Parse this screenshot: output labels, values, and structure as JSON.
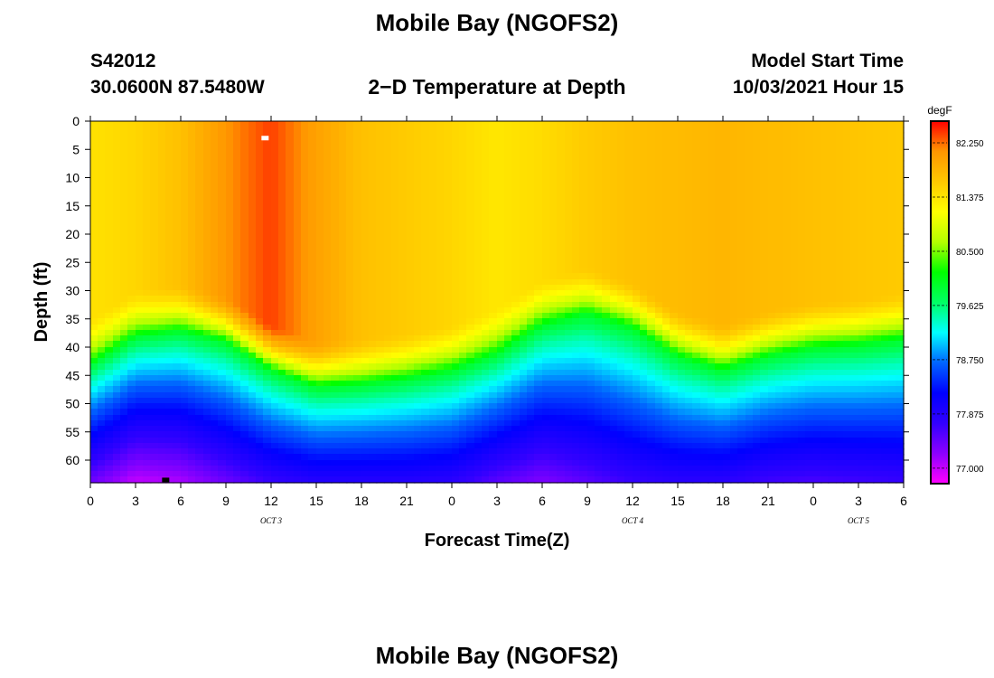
{
  "header": {
    "title": "Mobile Bay (NGOFS2)",
    "station_id": "S42012",
    "station_coords": "30.0600N  87.5480W",
    "plot_title": "2−D Temperature at Depth",
    "model_label": "Model Start Time",
    "model_time": "10/03/2021 Hour 15"
  },
  "footer": {
    "title": "Mobile Bay (NGOFS2)"
  },
  "chart_data": {
    "type": "heatmap",
    "xlabel": "Forecast Time(Z)",
    "ylabel": "Depth (ft)",
    "x_unit": "hours",
    "xlim": [
      0,
      54
    ],
    "ylim": [
      0,
      64
    ],
    "y_inverted": true,
    "x_ticks": [
      {
        "x": 0,
        "label": "0"
      },
      {
        "x": 3,
        "label": "3"
      },
      {
        "x": 6,
        "label": "6"
      },
      {
        "x": 9,
        "label": "9"
      },
      {
        "x": 12,
        "label": "12"
      },
      {
        "x": 15,
        "label": "15"
      },
      {
        "x": 18,
        "label": "18"
      },
      {
        "x": 21,
        "label": "21"
      },
      {
        "x": 24,
        "label": "0"
      },
      {
        "x": 27,
        "label": "3"
      },
      {
        "x": 30,
        "label": "6"
      },
      {
        "x": 33,
        "label": "9"
      },
      {
        "x": 36,
        "label": "12"
      },
      {
        "x": 39,
        "label": "15"
      },
      {
        "x": 42,
        "label": "18"
      },
      {
        "x": 45,
        "label": "21"
      },
      {
        "x": 48,
        "label": "0"
      },
      {
        "x": 51,
        "label": "3"
      },
      {
        "x": 54,
        "label": "6"
      }
    ],
    "date_labels": [
      {
        "x": 12,
        "label": "OCT 3"
      },
      {
        "x": 36,
        "label": "OCT 4"
      },
      {
        "x": 51,
        "label": "OCT 5"
      }
    ],
    "y_ticks": [
      0,
      5,
      10,
      15,
      20,
      25,
      30,
      35,
      40,
      45,
      50,
      55,
      60
    ],
    "colorbar": {
      "unit": "degF",
      "min": 76.75,
      "max": 82.6,
      "ticks": [
        82.25,
        81.375,
        80.5,
        79.625,
        78.75,
        77.875,
        77.0
      ],
      "tick_labels": [
        "82.250",
        "81.375",
        "80.500",
        "79.625",
        "78.750",
        "77.875",
        "77.000"
      ],
      "colors": [
        "#ff00ff",
        "#8c00ff",
        "#3200ff",
        "#0000ff",
        "#0064ff",
        "#00ffff",
        "#00ff64",
        "#00ff00",
        "#b4ff00",
        "#ffff00",
        "#ffc800",
        "#ff9600",
        "#ff0000"
      ]
    },
    "thermocline_depth_ft": [
      {
        "x": 0,
        "depth": 43
      },
      {
        "x": 3,
        "depth": 38
      },
      {
        "x": 6,
        "depth": 37
      },
      {
        "x": 9,
        "depth": 39
      },
      {
        "x": 12,
        "depth": 44
      },
      {
        "x": 15,
        "depth": 47
      },
      {
        "x": 18,
        "depth": 46.5
      },
      {
        "x": 21,
        "depth": 45.5
      },
      {
        "x": 24,
        "depth": 44
      },
      {
        "x": 27,
        "depth": 41
      },
      {
        "x": 30,
        "depth": 36
      },
      {
        "x": 33,
        "depth": 34
      },
      {
        "x": 36,
        "depth": 36.5
      },
      {
        "x": 39,
        "depth": 41.5
      },
      {
        "x": 42,
        "depth": 44
      },
      {
        "x": 45,
        "depth": 41.5
      },
      {
        "x": 48,
        "depth": 40
      },
      {
        "x": 51,
        "depth": 39.5
      },
      {
        "x": 54,
        "depth": 38.5
      }
    ],
    "surface_temp_degF": [
      {
        "x": 0,
        "temp": 81.4
      },
      {
        "x": 3,
        "temp": 81.5
      },
      {
        "x": 6,
        "temp": 81.7
      },
      {
        "x": 9,
        "temp": 82.1
      },
      {
        "x": 12,
        "temp": 82.4
      },
      {
        "x": 15,
        "temp": 82.0
      },
      {
        "x": 18,
        "temp": 81.7
      },
      {
        "x": 21,
        "temp": 81.6
      },
      {
        "x": 24,
        "temp": 81.5
      },
      {
        "x": 27,
        "temp": 81.35
      },
      {
        "x": 30,
        "temp": 81.45
      },
      {
        "x": 33,
        "temp": 81.6
      },
      {
        "x": 36,
        "temp": 81.7
      },
      {
        "x": 39,
        "temp": 81.75
      },
      {
        "x": 42,
        "temp": 81.8
      },
      {
        "x": 45,
        "temp": 81.75
      },
      {
        "x": 48,
        "temp": 81.7
      },
      {
        "x": 51,
        "temp": 81.65
      },
      {
        "x": 54,
        "temp": 81.6
      }
    ],
    "bottom_temp_degF": [
      {
        "x": 0,
        "temp": 77.4
      },
      {
        "x": 3,
        "temp": 77.0
      },
      {
        "x": 6,
        "temp": 77.1
      },
      {
        "x": 9,
        "temp": 77.4
      },
      {
        "x": 12,
        "temp": 77.7
      },
      {
        "x": 15,
        "temp": 77.85
      },
      {
        "x": 18,
        "temp": 77.85
      },
      {
        "x": 21,
        "temp": 77.85
      },
      {
        "x": 24,
        "temp": 77.8
      },
      {
        "x": 27,
        "temp": 77.5
      },
      {
        "x": 30,
        "temp": 77.3
      },
      {
        "x": 33,
        "temp": 77.5
      },
      {
        "x": 36,
        "temp": 77.7
      },
      {
        "x": 39,
        "temp": 77.8
      },
      {
        "x": 42,
        "temp": 77.8
      },
      {
        "x": 45,
        "temp": 77.65
      },
      {
        "x": 48,
        "temp": 77.6
      },
      {
        "x": 51,
        "temp": 77.65
      },
      {
        "x": 54,
        "temp": 77.7
      }
    ],
    "markers": [
      {
        "name": "max",
        "x": 11.6,
        "depth": 3,
        "color": "#ffffff"
      },
      {
        "name": "min",
        "x": 5.0,
        "depth": 63.5,
        "color": "#000000"
      }
    ]
  }
}
